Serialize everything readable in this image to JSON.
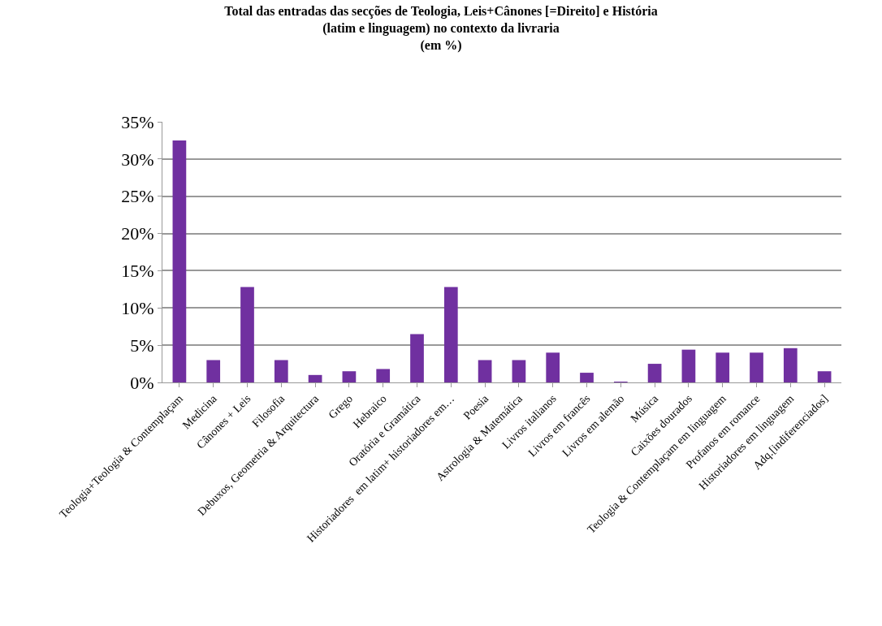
{
  "chart_data": {
    "type": "bar",
    "title": "Total das entradas das secções de Teologia, Leis+Cânones [=Direito] e História\n(latim e linguagem) no contexto da livraria\n(em %)",
    "categories": [
      "Teologia+Teologia & Contemplaçam",
      "Medicina",
      "Cânones + Leis",
      "Filosofia",
      "Debuxos, Geometria & Arquitectura",
      "Grego",
      "Hebraico",
      "Oratória e Gramática",
      "Historiadores  em latim+ historiadores em…",
      "Poesia",
      "Astrologia & Matemática",
      "Livros italianos",
      "Livros em francês",
      "Livros em alemão",
      "Música",
      "Caixões dourados",
      "Teologia & Contemplaçam em linguagem",
      "Profanos em romance",
      "Historiadores em linguagem",
      "Adq.[indiferenciados]"
    ],
    "values": [
      32.5,
      3,
      12.8,
      3,
      1,
      1.5,
      1.8,
      6.5,
      12.8,
      3,
      3,
      4,
      1.3,
      0.1,
      2.5,
      4.4,
      4,
      4,
      4.6,
      1.5
    ],
    "color": "#7030a0",
    "ylim": [
      0,
      35
    ],
    "yticks": [
      {
        "value": 0,
        "label": "0%"
      },
      {
        "value": 5,
        "label": "5%"
      },
      {
        "value": 10,
        "label": "10%"
      },
      {
        "value": 15,
        "label": "15%"
      },
      {
        "value": 20,
        "label": "20%"
      },
      {
        "value": 25,
        "label": "25%"
      },
      {
        "value": 30,
        "label": "30%"
      },
      {
        "value": 35,
        "label": "35%"
      }
    ],
    "grid": "y"
  }
}
